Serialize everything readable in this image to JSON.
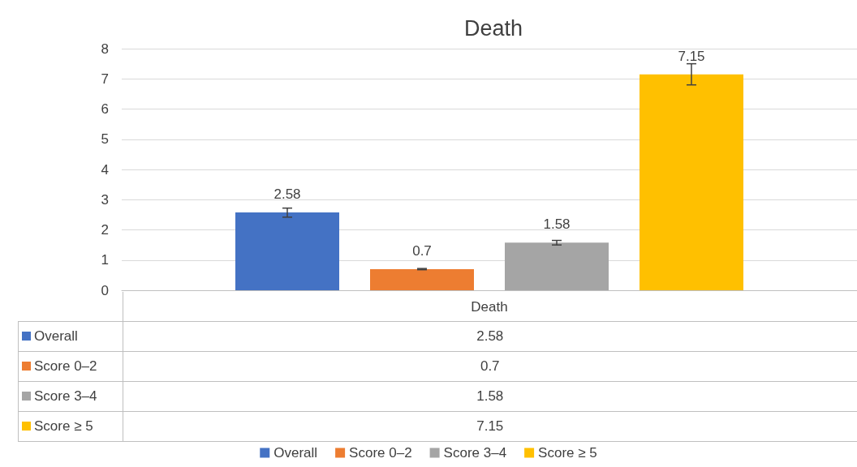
{
  "chart_data": {
    "type": "bar",
    "title": "Death",
    "categories": [
      "Death"
    ],
    "series": [
      {
        "name": "Overall",
        "color": "#4472c4",
        "values": [
          2.58
        ],
        "value_labels": [
          "2.58"
        ],
        "errors": [
          [
            2.42,
            2.72
          ]
        ]
      },
      {
        "name": "Score 0–2",
        "color": "#ed7d31",
        "values": [
          0.7
        ],
        "value_labels": [
          "0.7"
        ],
        "errors": [
          [
            0.68,
            0.72
          ]
        ]
      },
      {
        "name": "Score 3–4",
        "color": "#a5a5a5",
        "values": [
          1.58
        ],
        "value_labels": [
          "1.58"
        ],
        "errors": [
          [
            1.5,
            1.65
          ]
        ]
      },
      {
        "name": "Score ≥ 5",
        "color": "#ffc000",
        "values": [
          7.15
        ],
        "value_labels": [
          "7.15"
        ],
        "errors": [
          [
            6.8,
            7.5
          ]
        ]
      }
    ],
    "ylim": [
      0,
      8
    ],
    "yticks": [
      0,
      1,
      2,
      3,
      4,
      5,
      6,
      7,
      8
    ],
    "grid": "y",
    "legend": "bottom"
  }
}
